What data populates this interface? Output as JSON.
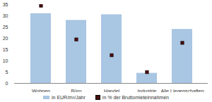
{
  "chart_data": {
    "type": "bar",
    "categories": [
      "Wohnen",
      "Büro",
      "Handel",
      "Industrie",
      "Alle Liegenschaften"
    ],
    "series": [
      {
        "name": "in EUR/m²/Jahr",
        "type": "bar",
        "color": "#a9c6e3",
        "values": [
          31,
          28,
          30.5,
          4.5,
          24
        ]
      },
      {
        "name": "in % der Bruttomieteinnahmen",
        "type": "scatter",
        "marker": "square",
        "color": "#4a0d0d",
        "values": [
          34.5,
          19.5,
          12.5,
          5,
          18
        ]
      }
    ],
    "ylim": [
      0,
      35
    ],
    "yticks": [
      0,
      5,
      10,
      15,
      20,
      25,
      30,
      35
    ],
    "legend": "bottom",
    "grid": false
  }
}
